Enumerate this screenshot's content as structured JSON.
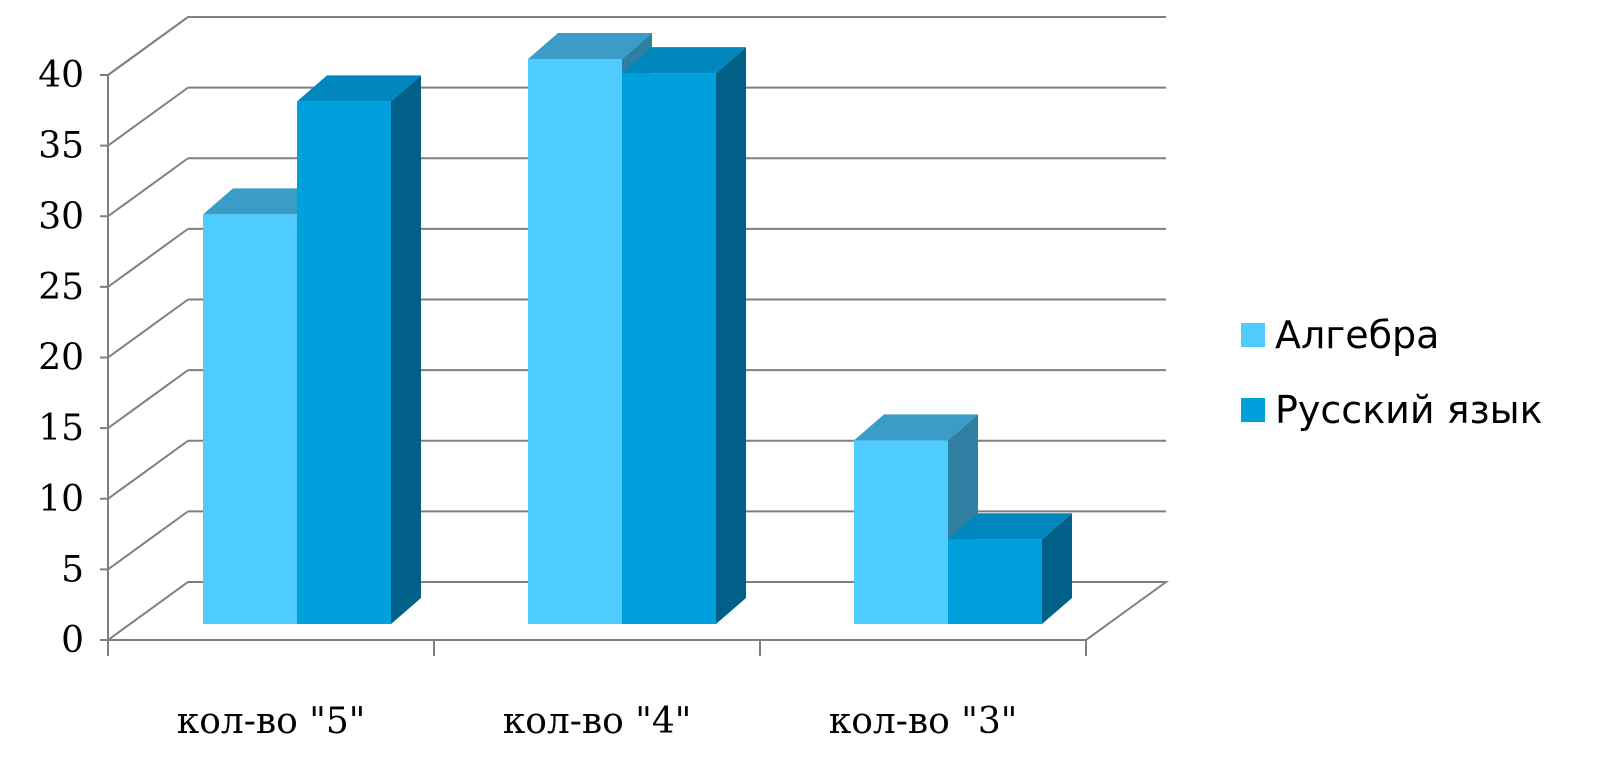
{
  "chart_data": {
    "type": "bar",
    "style": "3d-clustered-column",
    "categories": [
      "кол-во \"5\"",
      "кол-во \"4\"",
      "кол-во \"3\""
    ],
    "series": [
      {
        "name": "Алгебра",
        "values": [
          29,
          40,
          13
        ],
        "color": "#4ECBFF",
        "top_color": "#3B9CC8",
        "side_color": "#2F7FA3"
      },
      {
        "name": "Русский язык",
        "values": [
          37,
          39,
          6
        ],
        "color": "#00A0DC",
        "top_color": "#0088BE",
        "side_color": "#006088"
      }
    ],
    "y_ticks": [
      "0",
      "5",
      "10",
      "15",
      "20",
      "25",
      "30",
      "35",
      "40"
    ],
    "ylim": [
      0,
      40
    ],
    "grid": true,
    "legend_position": "right",
    "title": "",
    "xlabel": "",
    "ylabel": ""
  }
}
